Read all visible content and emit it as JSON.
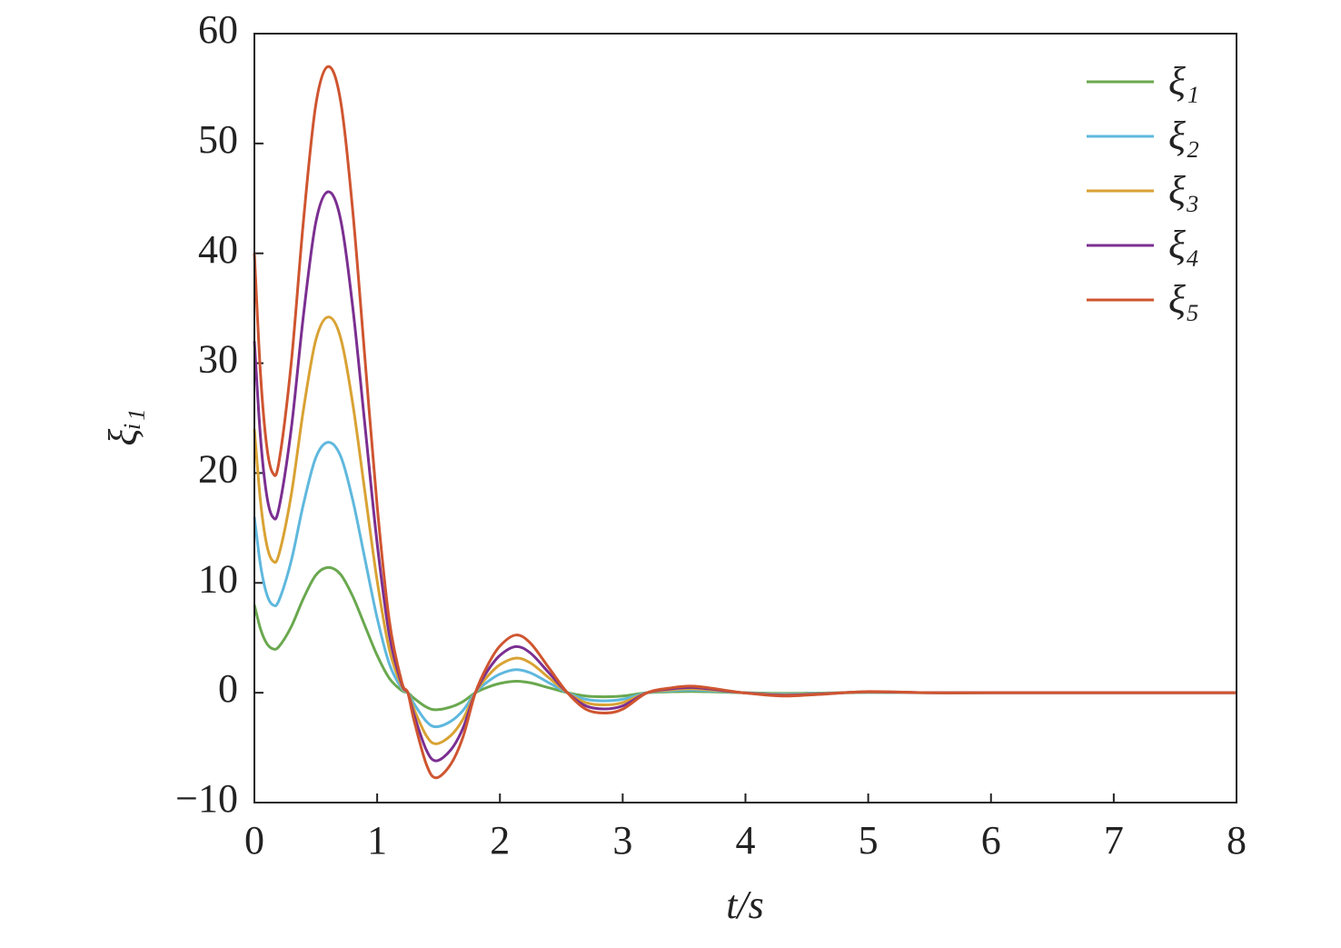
{
  "chart_data": {
    "type": "line",
    "x_label": "t/s",
    "y_label": "ξᵢ₁",
    "x": [
      0,
      0.05,
      0.1,
      0.15,
      0.2,
      0.3,
      0.4,
      0.5,
      0.6,
      0.7,
      0.8,
      0.9,
      1.0,
      1.1,
      1.2,
      1.25,
      1.3,
      1.4,
      1.48,
      1.6,
      1.7,
      1.8,
      1.9,
      2.0,
      2.13,
      2.25,
      2.4,
      2.55,
      2.7,
      2.85,
      3.0,
      3.2,
      3.4,
      3.55,
      3.7,
      3.98,
      4.3,
      4.6,
      5.0,
      5.5,
      6,
      7,
      8
    ],
    "series": [
      {
        "name": "ξ₁",
        "color": "#6aa84f",
        "values": [
          8,
          5.8,
          4.5,
          4.0,
          4.2,
          6.0,
          8.6,
          10.7,
          11.4,
          10.8,
          8.8,
          6.1,
          3.4,
          1.3,
          0.2,
          0,
          -0.5,
          -1.3,
          -1.55,
          -1.3,
          -0.8,
          0,
          0.5,
          0.85,
          1.05,
          0.9,
          0.45,
          0,
          -0.3,
          -0.37,
          -0.3,
          0,
          0.09,
          0.12,
          0.09,
          0,
          -0.06,
          -0.03,
          0.02,
          0,
          0,
          0,
          0
        ]
      },
      {
        "name": "ξ₂",
        "color": "#5fb8dd",
        "values": [
          16,
          11.6,
          9,
          8,
          8.4,
          12,
          17.2,
          21.4,
          22.8,
          21.6,
          17.6,
          12.2,
          6.8,
          2.6,
          0.4,
          0,
          -1,
          -2.6,
          -3.1,
          -2.6,
          -1.6,
          0,
          1,
          1.7,
          2.1,
          1.8,
          0.9,
          0,
          -0.6,
          -0.74,
          -0.6,
          0,
          0.18,
          0.24,
          0.18,
          0,
          -0.12,
          -0.06,
          0.04,
          0,
          0,
          0,
          0
        ]
      },
      {
        "name": "ξ₃",
        "color": "#d9a233",
        "values": [
          24,
          17.4,
          13.5,
          12,
          12.6,
          18,
          25.8,
          32.1,
          34.2,
          32.4,
          26.4,
          18.3,
          10.2,
          3.9,
          0.6,
          0,
          -1.5,
          -3.9,
          -4.65,
          -3.9,
          -2.4,
          0,
          1.5,
          2.55,
          3.15,
          2.7,
          1.35,
          0,
          -0.9,
          -1.11,
          -0.9,
          0,
          0.27,
          0.36,
          0.27,
          0,
          -0.18,
          -0.09,
          0.06,
          0,
          0,
          0,
          0
        ]
      },
      {
        "name": "ξ₄",
        "color": "#7b2f91",
        "values": [
          32,
          23.2,
          18,
          16,
          16.8,
          24,
          34.4,
          42.8,
          45.6,
          43.2,
          35.2,
          24.4,
          13.6,
          5.2,
          0.8,
          0,
          -2,
          -5.2,
          -6.2,
          -5.2,
          -3.2,
          0,
          2,
          3.4,
          4.2,
          3.6,
          1.8,
          0,
          -1.2,
          -1.48,
          -1.2,
          0,
          0.36,
          0.48,
          0.36,
          0,
          -0.24,
          -0.12,
          0.08,
          0,
          0,
          0,
          0
        ]
      },
      {
        "name": "ξ₅",
        "color": "#cf5530",
        "values": [
          40,
          29,
          22.5,
          20,
          21,
          30,
          43,
          53.5,
          57,
          54,
          44,
          30.5,
          17,
          6.5,
          1,
          0,
          -2.5,
          -6.5,
          -7.75,
          -6.5,
          -4,
          0,
          2.5,
          4.25,
          5.25,
          4.5,
          2.25,
          0,
          -1.5,
          -1.85,
          -1.5,
          0,
          0.45,
          0.6,
          0.45,
          0,
          -0.3,
          -0.15,
          0.1,
          0,
          0,
          0,
          0
        ]
      }
    ],
    "xlim": [
      0,
      8
    ],
    "xticks": [
      0,
      1,
      2,
      3,
      4,
      5,
      6,
      7,
      8
    ],
    "ylim": [
      -10,
      60
    ],
    "yticks": [
      {
        "value": -10,
        "label": "−10"
      },
      0,
      10,
      20,
      30,
      40,
      50,
      60
    ],
    "legend": "top-right",
    "grid": false
  }
}
